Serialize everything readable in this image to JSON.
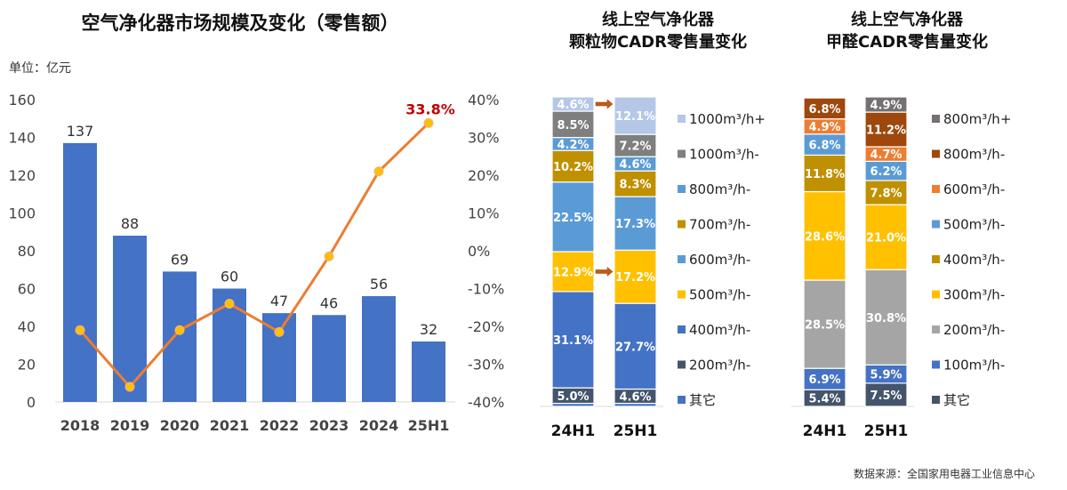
{
  "chart_data": [
    {
      "type": "bar+line",
      "title": "空气净化器市场规模及变化（零售额）",
      "unit_label": "单位：亿元",
      "categories": [
        "2018",
        "2019",
        "2020",
        "2021",
        "2022",
        "2023",
        "2024",
        "25H1"
      ],
      "series": [
        {
          "type": "bar",
          "axis": "left",
          "values": [
            137,
            88,
            69,
            60,
            47,
            46,
            56,
            32
          ],
          "color": "#4472C4"
        },
        {
          "type": "line",
          "axis": "right",
          "values": [
            -21,
            -36,
            -21,
            -14,
            -21.5,
            -1.5,
            21,
            33.8
          ],
          "color": "#ED7D31",
          "marker_color": "#FFC000",
          "highlight_label": "33.8%",
          "highlight_color": "#C00000"
        }
      ],
      "ylim_left": [
        0,
        160
      ],
      "yticks_left": [
        "0",
        "20",
        "40",
        "60",
        "80",
        "100",
        "120",
        "140",
        "160"
      ],
      "ylim_right": [
        -40,
        40
      ],
      "yticks_right": [
        "-40%",
        "-30%",
        "-20%",
        "-10%",
        "0%",
        "10%",
        "20%",
        "30%",
        "40%"
      ],
      "grid": false
    },
    {
      "type": "stacked-bar",
      "title_lines": [
        "线上空气净化器",
        "颗粒物CADR零售量变化"
      ],
      "categories": [
        "24H1",
        "25H1"
      ],
      "series": [
        {
          "name": "其它",
          "color": "#4472C4",
          "values": [
            1.0,
            1.0
          ]
        },
        {
          "name": "200m³/h-",
          "color": "#44546A",
          "values": [
            5.0,
            4.6
          ]
        },
        {
          "name": "400m³/h-",
          "color": "#4472C4",
          "values": [
            31.1,
            27.7
          ]
        },
        {
          "name": "500m³/h-",
          "color": "#FFC000",
          "values": [
            12.9,
            17.2
          ]
        },
        {
          "name": "600m³/h-",
          "color": "#5B9BD5",
          "values": [
            22.5,
            17.3
          ]
        },
        {
          "name": "700m³/h-",
          "color": "#BF9000",
          "values": [
            10.2,
            8.3
          ]
        },
        {
          "name": "800m³/h-",
          "color": "#5B9BD5",
          "values": [
            4.2,
            4.6
          ]
        },
        {
          "name": "1000m³/h-",
          "color": "#7F7F7F",
          "values": [
            8.5,
            7.2
          ]
        },
        {
          "name": "1000m³/h+",
          "color": "#B4C7E7",
          "values": [
            4.6,
            12.1
          ]
        }
      ],
      "arrows_series": [
        "500m³/h-",
        "1000m³/h+"
      ],
      "legend": "right"
    },
    {
      "type": "stacked-bar",
      "title_lines": [
        "线上空气净化器",
        "甲醛CADR零售量变化"
      ],
      "categories": [
        "24H1",
        "25H1"
      ],
      "series": [
        {
          "name": "其它",
          "color": "#44546A",
          "values": [
            5.4,
            7.5
          ]
        },
        {
          "name": "100m³/h-",
          "color": "#4472C4",
          "values": [
            6.9,
            5.9
          ]
        },
        {
          "name": "200m³/h-",
          "color": "#A5A5A5",
          "values": [
            28.5,
            30.8
          ]
        },
        {
          "name": "300m³/h-",
          "color": "#FFC000",
          "values": [
            28.6,
            21.0
          ]
        },
        {
          "name": "400m³/h-",
          "color": "#BF9000",
          "values": [
            11.8,
            7.8
          ]
        },
        {
          "name": "500m³/h-",
          "color": "#5B9BD5",
          "values": [
            6.8,
            6.2
          ]
        },
        {
          "name": "600m³/h-",
          "color": "#ED7D31",
          "values": [
            4.9,
            4.7
          ]
        },
        {
          "name": "800m³/h-",
          "color": "#9E480E",
          "values": [
            6.8,
            11.2
          ]
        },
        {
          "name": "800m³/h+",
          "color": "#767171",
          "values": [
            0.3,
            4.9
          ]
        }
      ],
      "legend": "right"
    }
  ],
  "source": "数据来源：全国家用电器工业信息中心"
}
